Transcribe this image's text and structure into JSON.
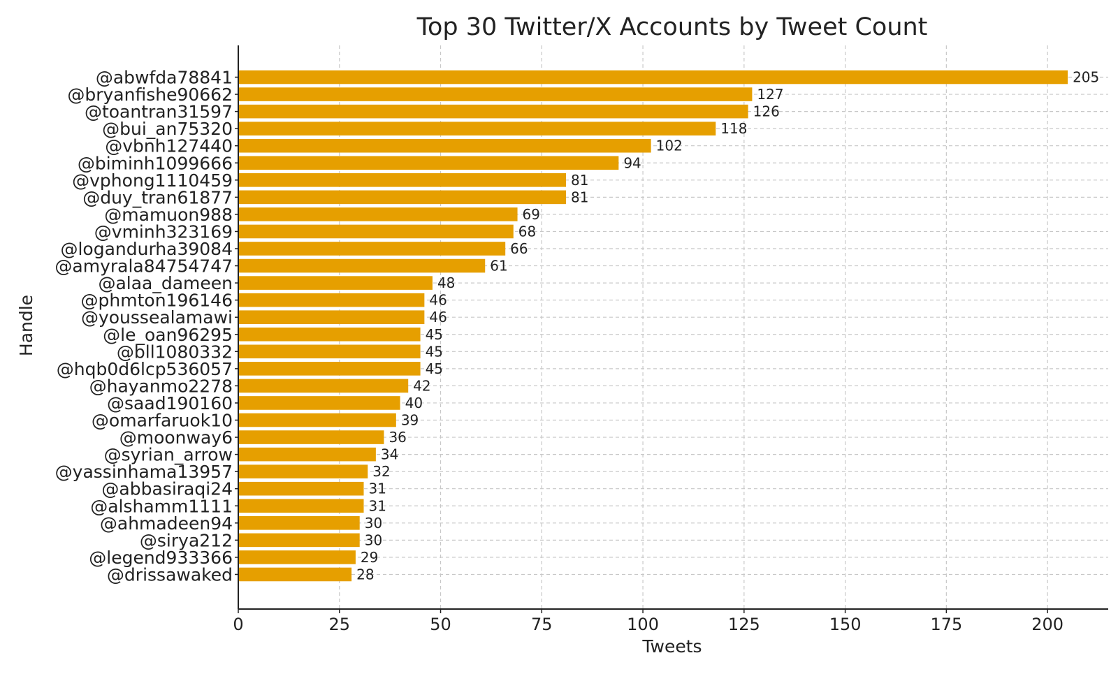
{
  "chart_data": {
    "type": "bar",
    "orientation": "horizontal",
    "title": "Top 30 Twitter/X Accounts by Tweet Count",
    "xlabel": "Tweets",
    "ylabel": "Handle",
    "xlim": [
      0,
      215
    ],
    "xticks": [
      0,
      25,
      50,
      75,
      100,
      125,
      150,
      175,
      200
    ],
    "grid": true,
    "bar_color": "#E69F00",
    "categories": [
      "@abwfda78841",
      "@bryanfishe90662",
      "@toantran31597",
      "@bui_an75320",
      "@vbnh127440",
      "@biminh1099666",
      "@vphong1110459",
      "@duy_tran61877",
      "@mamuon988",
      "@vminh323169",
      "@logandurha39084",
      "@amyrala84754747",
      "@alaa_dameen",
      "@phmton196146",
      "@youssealamawi",
      "@le_oan96295",
      "@bll1080332",
      "@hqb0d6lcp536057",
      "@hayanmo2278",
      "@saad190160",
      "@omarfaruok10",
      "@moonway6",
      "@syrian_arrow",
      "@yassinhama13957",
      "@abbasiraqi24",
      "@alshamm1111",
      "@ahmadeen94",
      "@sirya212",
      "@legend933366",
      "@drissawaked"
    ],
    "values": [
      205,
      127,
      126,
      118,
      102,
      94,
      81,
      81,
      69,
      68,
      66,
      61,
      48,
      46,
      46,
      45,
      45,
      45,
      42,
      40,
      39,
      36,
      34,
      32,
      31,
      31,
      30,
      30,
      29,
      28
    ]
  }
}
